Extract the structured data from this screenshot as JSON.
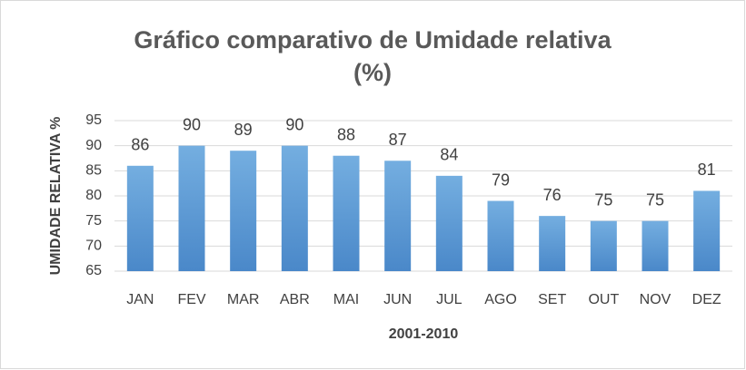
{
  "chart_data": {
    "type": "bar",
    "title": "Gráfico comparativo de Umidade relativa (%)",
    "categories": [
      "JAN",
      "FEV",
      "MAR",
      "ABR",
      "MAI",
      "JUN",
      "JUL",
      "AGO",
      "SET",
      "OUT",
      "NOV",
      "DEZ"
    ],
    "values": [
      86,
      90,
      89,
      90,
      88,
      87,
      84,
      79,
      76,
      75,
      75,
      81
    ],
    "color": "#5b9bd5",
    "ylim": [
      65,
      95
    ],
    "yticks": [
      65,
      70,
      75,
      80,
      85,
      90,
      95
    ],
    "grid": true,
    "xlabel": "2001-2010",
    "ylabel": "UMIDADE RELATIVA %"
  }
}
